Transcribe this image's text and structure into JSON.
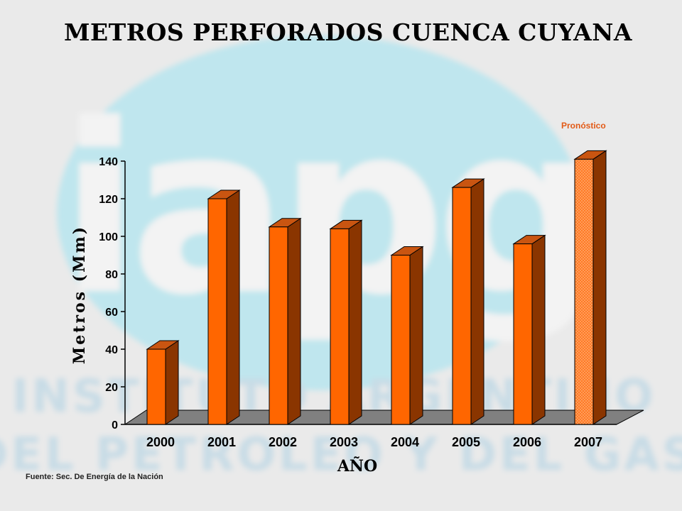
{
  "watermark": {
    "logo_text": "iapg",
    "line1": "INSTITUTO ARGENTINO",
    "line2": "DEL PETROLEO Y DEL GAS"
  },
  "colors": {
    "bar_front": "#ff6600",
    "bar_side": "#8a3500",
    "bar_top": "#c95511",
    "forecast_front": "#ff7a26",
    "floor": "#808080",
    "note": "#e25a16"
  },
  "chart_data": {
    "type": "bar",
    "title": "METROS PERFORADOS CUENCA CUYANA",
    "xlabel": "AÑO",
    "ylabel": "Metros (Mm)",
    "categories": [
      "2000",
      "2001",
      "2002",
      "2003",
      "2004",
      "2005",
      "2006",
      "2007"
    ],
    "values": [
      40,
      120,
      105,
      104,
      90,
      126,
      96,
      141
    ],
    "ylim": [
      0,
      140
    ],
    "yticks": [
      0,
      20,
      40,
      60,
      80,
      100,
      120,
      140
    ],
    "forecast_category": "2007",
    "forecast_label": "Pronóstico",
    "grid": false,
    "style": "3d"
  },
  "source": "Fuente: Sec. De Energía de la Nación"
}
